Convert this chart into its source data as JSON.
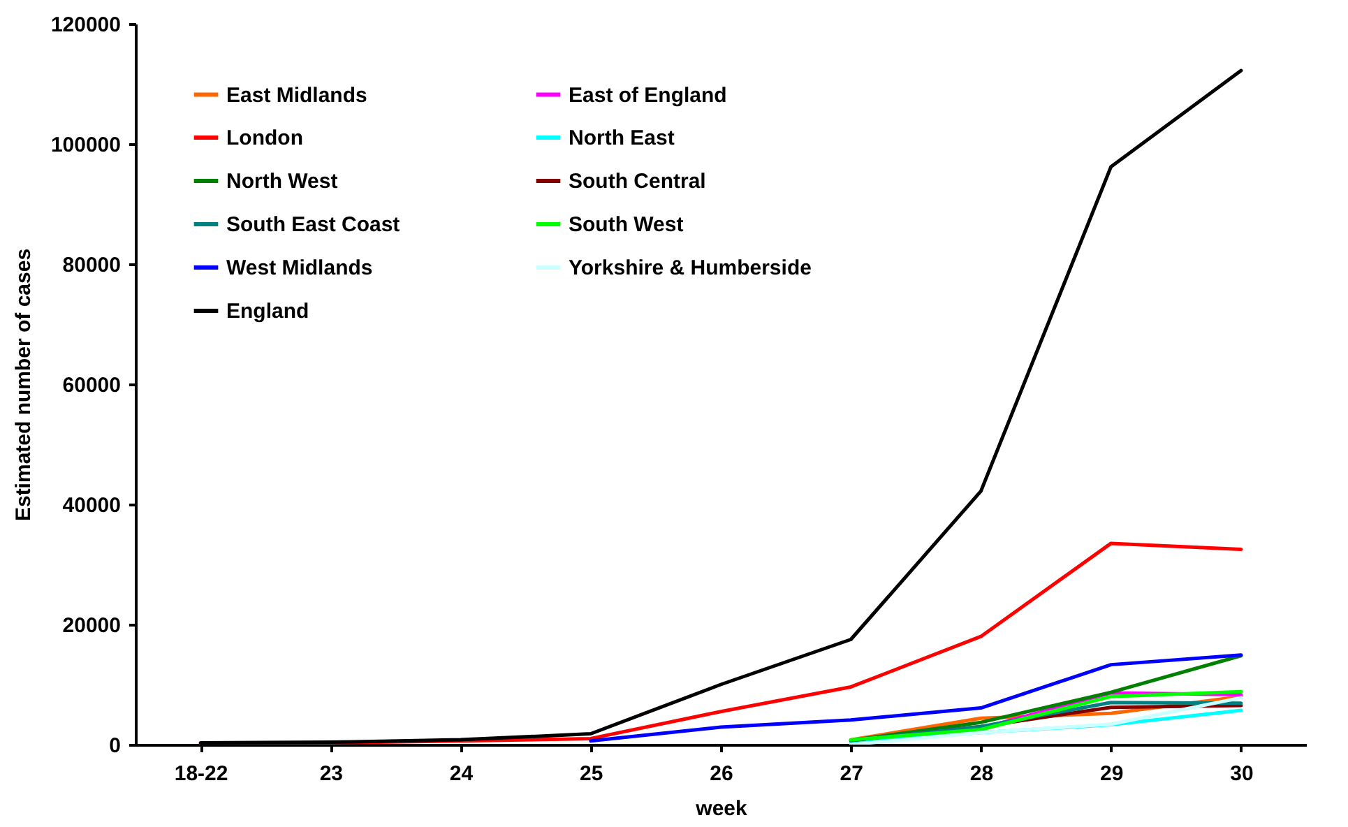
{
  "chart_data": {
    "type": "line",
    "xlabel": "week",
    "ylabel": "Estimated number of cases",
    "categories": [
      "18-22",
      "23",
      "24",
      "25",
      "26",
      "27",
      "28",
      "29",
      "30"
    ],
    "ylim": [
      0,
      120000
    ],
    "yticks": [
      0,
      20000,
      40000,
      60000,
      80000,
      100000,
      120000
    ],
    "grid": false,
    "legend": "top left",
    "marker": "none",
    "line_style": "solid",
    "series": [
      {
        "name": "East Midlands",
        "color": "#ff6600",
        "values": [
          null,
          null,
          null,
          null,
          null,
          800,
          4400,
          5200,
          8000
        ]
      },
      {
        "name": "East of England",
        "color": "#ff00ff",
        "values": [
          null,
          null,
          null,
          null,
          null,
          600,
          2700,
          8600,
          8300
        ]
      },
      {
        "name": "London",
        "color": "#ff0000",
        "values": [
          200,
          300,
          600,
          1000,
          5500,
          9600,
          18000,
          33500,
          32500
        ]
      },
      {
        "name": "North East",
        "color": "#00ffff",
        "values": [
          null,
          null,
          null,
          null,
          null,
          300,
          2000,
          3300,
          5700
        ]
      },
      {
        "name": "North West",
        "color": "#008000",
        "values": [
          null,
          null,
          null,
          null,
          null,
          700,
          3700,
          8700,
          14800
        ]
      },
      {
        "name": "South Central",
        "color": "#800000",
        "values": [
          null,
          null,
          null,
          null,
          null,
          700,
          3000,
          6200,
          6500
        ]
      },
      {
        "name": "South East Coast",
        "color": "#008080",
        "values": [
          null,
          null,
          null,
          null,
          null,
          700,
          3000,
          7000,
          6900
        ]
      },
      {
        "name": "South West",
        "color": "#00ff00",
        "values": [
          null,
          null,
          null,
          null,
          null,
          800,
          2500,
          8000,
          8800
        ]
      },
      {
        "name": "West Midlands",
        "color": "#0000ff",
        "values": [
          null,
          null,
          null,
          600,
          2900,
          4100,
          6100,
          13300,
          14900
        ]
      },
      {
        "name": "Yorkshire & Humberside",
        "color": "#ccffff",
        "values": [
          null,
          null,
          null,
          null,
          null,
          0,
          2000,
          3400,
          7800
        ]
      },
      {
        "name": "England",
        "color": "#000000",
        "values": [
          300,
          400,
          800,
          1800,
          10000,
          17500,
          42200,
          96200,
          112200
        ]
      }
    ]
  }
}
